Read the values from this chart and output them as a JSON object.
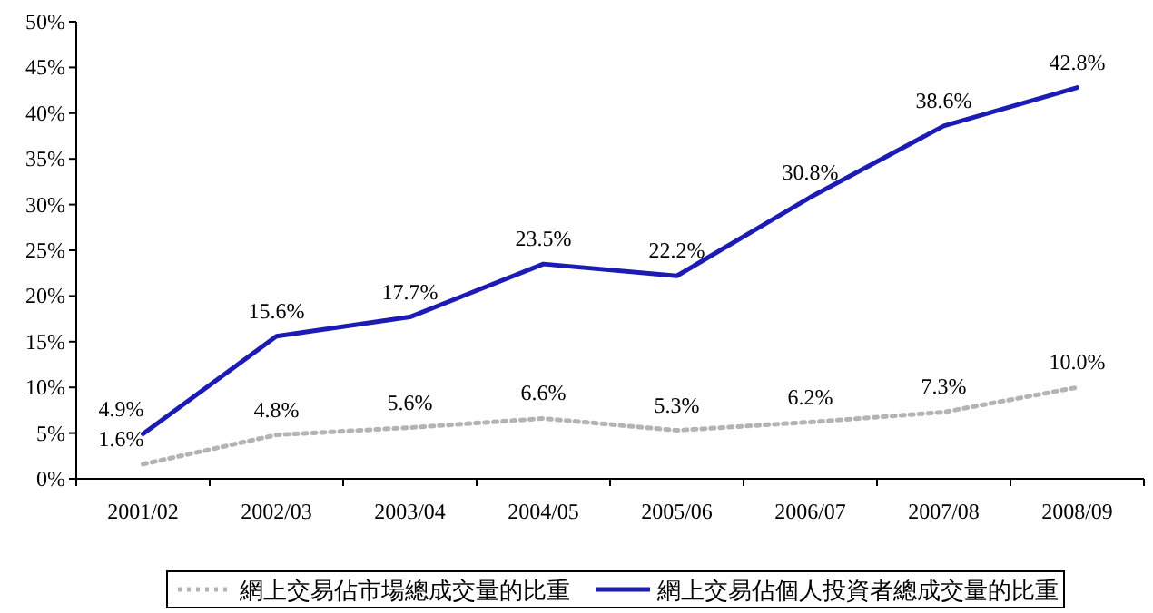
{
  "chart_data": {
    "type": "line",
    "categories": [
      "2001/02",
      "2002/03",
      "2003/04",
      "2004/05",
      "2005/06",
      "2006/07",
      "2007/08",
      "2008/09"
    ],
    "series": [
      {
        "name": "網上交易佔市場總成交量的比重",
        "color": "#b4b4b4",
        "line_style": "dotted",
        "values": [
          1.6,
          4.8,
          5.6,
          6.6,
          5.3,
          6.2,
          7.3,
          10.0
        ],
        "value_labels": [
          "1.6%",
          "4.8%",
          "5.6%",
          "6.6%",
          "5.3%",
          "6.2%",
          "7.3%",
          "10.0%"
        ]
      },
      {
        "name": "網上交易佔個人投資者總成交量的比重",
        "color": "#1c1cb4",
        "line_style": "solid",
        "values": [
          4.9,
          15.6,
          17.7,
          23.5,
          22.2,
          30.8,
          38.6,
          42.8
        ],
        "value_labels": [
          "4.9%",
          "15.6%",
          "17.7%",
          "23.5%",
          "22.2%",
          "30.8%",
          "38.6%",
          "42.8%"
        ]
      }
    ],
    "ylim": [
      0,
      50
    ],
    "yticks": [
      {
        "value": 0,
        "label": "0%"
      },
      {
        "value": 5,
        "label": "5%"
      },
      {
        "value": 10,
        "label": "10%"
      },
      {
        "value": 15,
        "label": "15%"
      },
      {
        "value": 20,
        "label": "20%"
      },
      {
        "value": 25,
        "label": "25%"
      },
      {
        "value": 30,
        "label": "30%"
      },
      {
        "value": 35,
        "label": "35%"
      },
      {
        "value": 40,
        "label": "40%"
      },
      {
        "value": 45,
        "label": "45%"
      },
      {
        "value": 50,
        "label": "50%"
      }
    ],
    "legend": "bottom",
    "grid": false
  }
}
